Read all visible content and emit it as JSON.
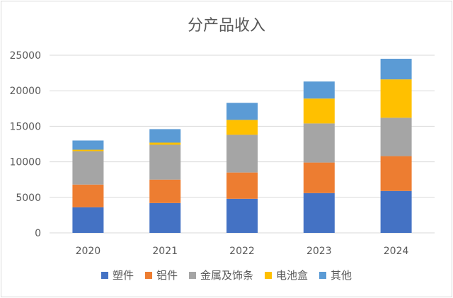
{
  "chart_data": {
    "type": "bar",
    "stacked": true,
    "title": "分产品收入",
    "categories": [
      "2020",
      "2021",
      "2022",
      "2023",
      "2024"
    ],
    "ylim": [
      0,
      25000
    ],
    "yticks": [
      0,
      5000,
      10000,
      15000,
      20000,
      25000
    ],
    "grid": true,
    "legend_position": "bottom",
    "series": [
      {
        "name": "塑件",
        "color": "#4472C4",
        "values": [
          3600,
          4200,
          4800,
          5600,
          5900
        ]
      },
      {
        "name": "铝件",
        "color": "#ED7D31",
        "values": [
          3200,
          3300,
          3700,
          4300,
          4900
        ]
      },
      {
        "name": "金属及饰条",
        "color": "#A5A5A5",
        "values": [
          4700,
          4900,
          5300,
          5500,
          5400
        ]
      },
      {
        "name": "电池盒",
        "color": "#FFC000",
        "values": [
          200,
          300,
          2100,
          3500,
          5400
        ]
      },
      {
        "name": "其他",
        "color": "#5B9BD5",
        "values": [
          1300,
          1900,
          2400,
          2400,
          2900
        ]
      }
    ]
  }
}
